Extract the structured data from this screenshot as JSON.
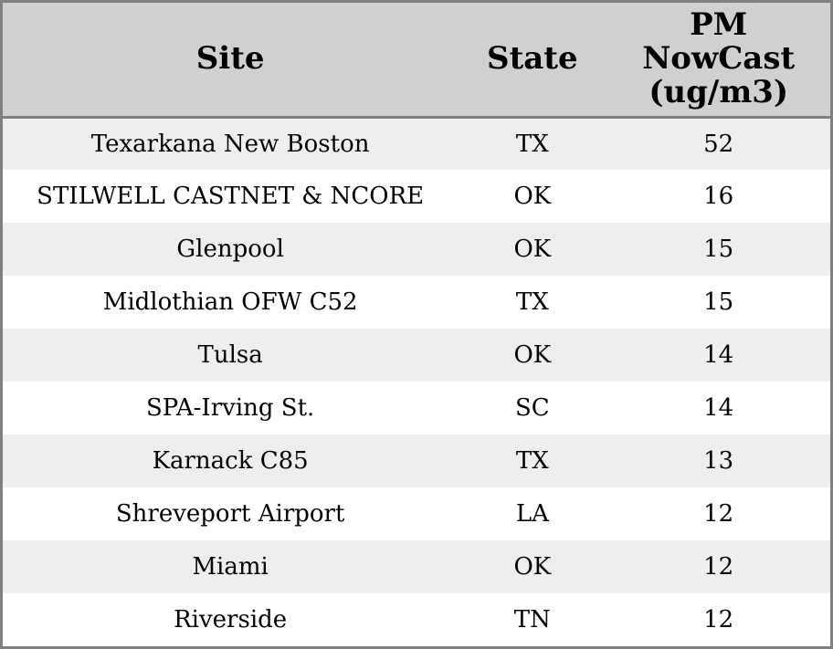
{
  "table": {
    "columns": [
      {
        "key": "site",
        "label": "Site"
      },
      {
        "key": "state",
        "label": "State"
      },
      {
        "key": "pm_nowcast",
        "label": "PM NowCast (ug/m3)"
      }
    ],
    "rows": [
      {
        "site": "Texarkana New Boston",
        "state": "TX",
        "pm_nowcast": "52"
      },
      {
        "site": "STILWELL CASTNET & NCORE",
        "state": "OK",
        "pm_nowcast": "16"
      },
      {
        "site": "Glenpool",
        "state": "OK",
        "pm_nowcast": "15"
      },
      {
        "site": "Midlothian OFW C52",
        "state": "TX",
        "pm_nowcast": "15"
      },
      {
        "site": "Tulsa",
        "state": "OK",
        "pm_nowcast": "14"
      },
      {
        "site": "SPA-Irving St.",
        "state": "SC",
        "pm_nowcast": "14"
      },
      {
        "site": "Karnack C85",
        "state": "TX",
        "pm_nowcast": "13"
      },
      {
        "site": "Shreveport Airport",
        "state": "LA",
        "pm_nowcast": "12"
      },
      {
        "site": "Miami",
        "state": "OK",
        "pm_nowcast": "12"
      },
      {
        "site": "Riverside",
        "state": "TN",
        "pm_nowcast": "12"
      }
    ]
  },
  "chart_data": {
    "type": "table",
    "columns": [
      "Site",
      "State",
      "PM NowCast (ug/m3)"
    ],
    "rows": [
      [
        "Texarkana New Boston",
        "TX",
        52
      ],
      [
        "STILWELL CASTNET & NCORE",
        "OK",
        16
      ],
      [
        "Glenpool",
        "OK",
        15
      ],
      [
        "Midlothian OFW C52",
        "TX",
        15
      ],
      [
        "Tulsa",
        "OK",
        14
      ],
      [
        "SPA-Irving St.",
        "SC",
        14
      ],
      [
        "Karnack C85",
        "TX",
        13
      ],
      [
        "Shreveport Airport",
        "LA",
        12
      ],
      [
        "Miami",
        "OK",
        12
      ],
      [
        "Riverside",
        "TN",
        12
      ]
    ],
    "title": "",
    "layout_hints": {
      "header_row": true,
      "zebra_striping": true,
      "all_columns_center_aligned": true
    }
  },
  "colors": {
    "header_bg": "#d0d0d0",
    "row_alt_bg": "#eeeeee",
    "row_bg": "#ffffff",
    "border": "#808080",
    "text": "#000000"
  }
}
